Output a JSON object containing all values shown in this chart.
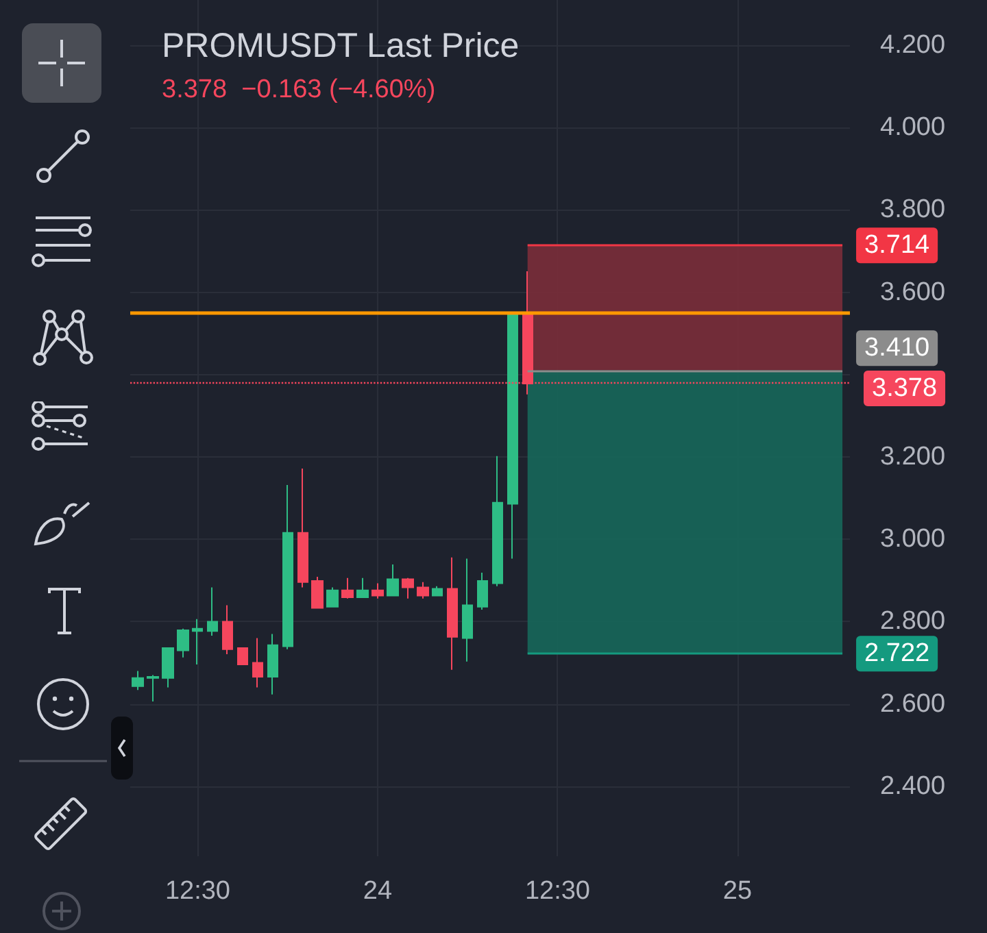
{
  "chart_data": {
    "type": "candlestick",
    "title": "PROMUSDT Last Price",
    "subtitle": "3.378  −0.163 (−4.60%)",
    "categories": [
      null,
      null,
      null,
      null,
      "12:30",
      null,
      null,
      null,
      null,
      null,
      null,
      null,
      null,
      null,
      null,
      null,
      "24",
      null,
      null,
      null,
      null,
      null,
      null,
      null,
      null,
      null,
      null,
      null,
      "12:30",
      null,
      null,
      null,
      null,
      null,
      null,
      null,
      null,
      null,
      null,
      null,
      "25",
      null,
      null,
      null,
      null,
      null,
      null,
      null
    ],
    "ohlc": [
      [
        2.643,
        2.68,
        2.634,
        2.663
      ],
      [
        2.663,
        2.67,
        2.606,
        2.666
      ],
      [
        2.663,
        2.736,
        2.64,
        2.736
      ],
      [
        2.73,
        2.783,
        2.713,
        2.779
      ],
      [
        2.777,
        2.806,
        2.696,
        2.783
      ],
      [
        2.777,
        2.883,
        2.766,
        2.8
      ],
      [
        2.8,
        2.84,
        2.721,
        2.733
      ],
      [
        2.736,
        2.736,
        2.696,
        2.696
      ],
      [
        2.7,
        2.76,
        2.64,
        2.666
      ],
      [
        2.666,
        2.77,
        2.623,
        2.743
      ],
      [
        2.74,
        3.132,
        2.733,
        3.016
      ],
      [
        3.016,
        3.172,
        2.883,
        2.896
      ],
      [
        2.899,
        2.909,
        2.833,
        2.833
      ],
      [
        2.836,
        2.883,
        2.836,
        2.876
      ],
      [
        2.876,
        2.906,
        2.856,
        2.859
      ],
      [
        2.859,
        2.906,
        2.859,
        2.876
      ],
      [
        2.876,
        2.893,
        2.856,
        2.863
      ],
      [
        2.863,
        2.939,
        2.863,
        2.903
      ],
      [
        2.903,
        2.906,
        2.856,
        2.883
      ],
      [
        2.883,
        2.896,
        2.856,
        2.863
      ],
      [
        2.863,
        2.886,
        2.863,
        2.88
      ],
      [
        2.88,
        2.956,
        2.683,
        2.763
      ],
      [
        2.76,
        2.953,
        2.703,
        2.84
      ],
      [
        2.836,
        2.919,
        2.829,
        2.899
      ],
      [
        2.893,
        3.202,
        2.886,
        3.089
      ],
      [
        3.086,
        3.551,
        2.953,
        3.545
      ],
      [
        3.545,
        3.651,
        3.352,
        3.378
      ],
      null,
      null,
      null,
      null,
      null,
      null,
      null,
      null,
      null,
      null,
      null,
      null,
      null,
      null,
      null,
      null,
      null,
      null,
      null,
      null,
      null
    ],
    "colors": [
      "#2ebd85",
      "#2ebd85",
      "#2ebd85",
      "#2ebd85",
      "#2ebd85",
      "#2ebd85",
      "#f6465d",
      "#f6465d",
      "#f6465d",
      "#2ebd85",
      "#2ebd85",
      "#f6465d",
      "#f6465d",
      "#2ebd85",
      "#f6465d",
      "#2ebd85",
      "#f6465d",
      "#2ebd85",
      "#f6465d",
      "#f6465d",
      "#2ebd85",
      "#f6465d",
      "#2ebd85",
      "#2ebd85",
      "#2ebd85",
      "#2ebd85",
      "#f6465d",
      null,
      null,
      null,
      null,
      null,
      null,
      null,
      null,
      null,
      null,
      null,
      null,
      null,
      null,
      null,
      null,
      null,
      null,
      null,
      null,
      null
    ],
    "ylim": [
      2.23,
      4.31
    ],
    "yticks": [
      {
        "value": 2.4,
        "label": "2.400"
      },
      {
        "value": 2.6,
        "label": "2.600"
      },
      {
        "value": 2.8,
        "label": "2.800"
      },
      {
        "value": 3.0,
        "label": "3.000"
      },
      {
        "value": 3.2,
        "label": "3.200"
      },
      {
        "value": 3.4,
        "label": null
      },
      {
        "value": 3.6,
        "label": "3.600"
      },
      {
        "value": 3.8,
        "label": "3.800"
      },
      {
        "value": 4.0,
        "label": "4.000"
      },
      {
        "value": 4.2,
        "label": "4.200"
      }
    ],
    "bands": [
      {
        "axis": "y",
        "from": 3.41,
        "to": 3.714,
        "color": "#7a2e3a"
      },
      {
        "axis": "y",
        "from": 2.722,
        "to": 3.41,
        "color": "#16675a"
      }
    ],
    "ref_lines": [
      {
        "axis": "y",
        "value": 3.55,
        "color": "#ff9800",
        "line_style": "solid"
      },
      {
        "axis": "y",
        "value": 3.378,
        "label": "3.378",
        "color": "#f6465d",
        "line_style": "dotted"
      },
      {
        "axis": "y",
        "value": 3.714,
        "label": "3.714",
        "color": "#f23645",
        "line_style": "solid"
      },
      {
        "axis": "y",
        "value": 3.41,
        "label": "3.410",
        "color": "#8c8c8c",
        "line_style": "solid"
      },
      {
        "axis": "y",
        "value": 2.722,
        "label": "2.722",
        "color": "#149a7f",
        "line_style": "solid"
      }
    ],
    "grid": true
  }
}
